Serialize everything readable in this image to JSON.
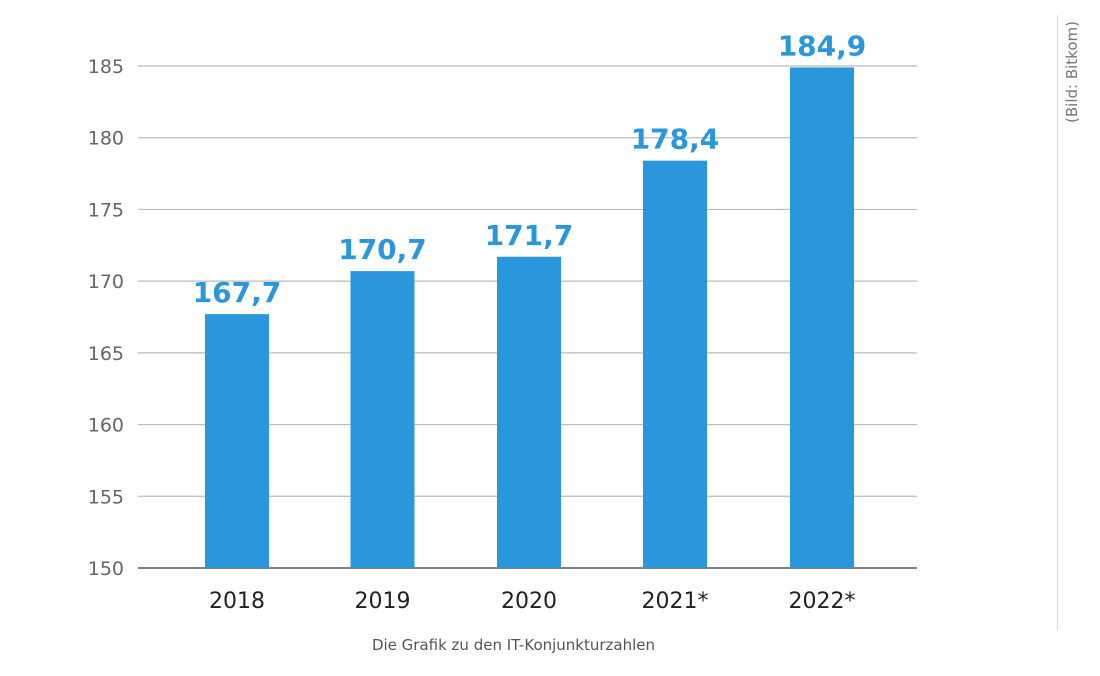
{
  "chart_data": {
    "type": "bar",
    "categories": [
      "2018",
      "2019",
      "2020",
      "2021*",
      "2022*"
    ],
    "values": [
      167.7,
      170.7,
      171.7,
      178.4,
      184.9
    ],
    "value_labels": [
      "167,7",
      "170,7",
      "171,7",
      "178,4",
      "184,9"
    ],
    "yticks": [
      150,
      155,
      160,
      165,
      170,
      175,
      180,
      185
    ],
    "ylim": [
      150,
      185
    ],
    "grid": true,
    "title": "",
    "xlabel": "",
    "ylabel": "",
    "bar_color": "#2a97dd",
    "label_color": "#2a97dd"
  },
  "caption": "Die Grafik zu den IT-Konjunkturzahlen",
  "credit": "(Bild: Bitkom)"
}
